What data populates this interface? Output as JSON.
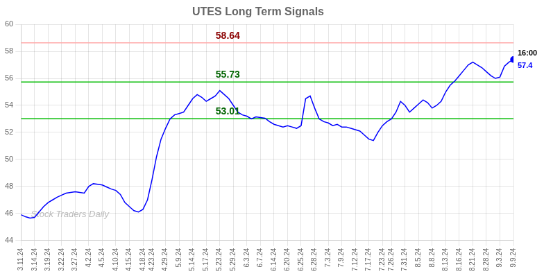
{
  "chart_data": {
    "type": "line",
    "title": "UTES Long Term Signals",
    "categories": [
      "3.11.24",
      null,
      null,
      "3.14.24",
      null,
      null,
      "3.19.24",
      null,
      null,
      "3.22.24",
      null,
      null,
      "3.27.24",
      null,
      null,
      "4.2.24",
      null,
      null,
      "4.5.24",
      null,
      null,
      "4.10.24",
      null,
      null,
      "4.15.24",
      null,
      null,
      "4.18.24",
      null,
      "4.23.24",
      null,
      null,
      "4.29.24",
      null,
      null,
      "5.9.24",
      null,
      null,
      "5.14.24",
      null,
      null,
      "5.17.24",
      null,
      null,
      "5.23.24",
      null,
      null,
      "5.29.24",
      null,
      null,
      "6.3.24",
      null,
      null,
      "6.7.24",
      null,
      null,
      "6.14.24",
      null,
      null,
      "6.20.24",
      null,
      null,
      "6.25.24",
      null,
      null,
      "6.28.24",
      null,
      null,
      "7.3.24",
      null,
      null,
      "7.9.24",
      null,
      null,
      "7.12.24",
      null,
      null,
      "7.17.24",
      null,
      null,
      "7.23.24",
      null,
      "7.26.24",
      null,
      null,
      "7.31.24",
      null,
      null,
      "8.5.24",
      null,
      null,
      "8.8.24",
      null,
      null,
      "8.13.24",
      null,
      null,
      "8.16.24",
      null,
      null,
      "8.21.24",
      null,
      null,
      "8.28.24",
      null,
      null,
      "9.3.24",
      null,
      null,
      "9.9.24"
    ],
    "values": [
      45.9,
      45.75,
      45.65,
      45.7,
      46.1,
      46.5,
      46.8,
      47.0,
      47.2,
      47.35,
      47.5,
      47.55,
      47.6,
      47.55,
      47.5,
      48.0,
      48.2,
      48.15,
      48.1,
      47.95,
      47.8,
      47.7,
      47.4,
      46.8,
      46.5,
      46.2,
      46.1,
      46.3,
      47.0,
      48.5,
      50.2,
      51.5,
      52.3,
      53.0,
      53.3,
      53.4,
      53.5,
      54.0,
      54.5,
      54.8,
      54.6,
      54.3,
      54.5,
      54.7,
      55.1,
      54.8,
      54.5,
      54.0,
      53.5,
      53.3,
      53.2,
      53.0,
      53.15,
      53.1,
      53.05,
      52.8,
      52.6,
      52.5,
      52.4,
      52.5,
      52.4,
      52.3,
      52.5,
      54.5,
      54.7,
      53.8,
      53.0,
      52.8,
      52.7,
      52.5,
      52.6,
      52.4,
      52.4,
      52.3,
      52.2,
      52.1,
      51.8,
      51.5,
      51.4,
      52.0,
      52.5,
      52.8,
      53.0,
      53.5,
      54.3,
      54.0,
      53.5,
      53.8,
      54.1,
      54.4,
      54.2,
      53.8,
      54.0,
      54.3,
      55.0,
      55.5,
      55.8,
      56.2,
      56.6,
      57.0,
      57.2,
      57.0,
      56.8,
      56.5,
      56.2,
      56.0,
      56.1,
      56.9,
      57.2,
      57.4
    ],
    "color": "blue",
    "hlines": [
      {
        "value": 58.64,
        "label": "58.64",
        "color": "#ffaaaa",
        "label_color": "darkred"
      },
      {
        "value": 55.73,
        "label": "55.73",
        "color": "#00bb00",
        "label_color": "darkgreen"
      },
      {
        "value": 53.01,
        "label": "53.01",
        "color": "#00bb00",
        "label_color": "darkgreen"
      }
    ],
    "annotations": [
      {
        "text": "16:00",
        "color": "black"
      },
      {
        "text": "57.4",
        "color": "blue"
      }
    ],
    "watermark": "Stock Traders Daily",
    "ylim": [
      44,
      60
    ],
    "yticks": [
      44,
      46,
      48,
      50,
      52,
      54,
      56,
      58,
      60
    ],
    "grid": true
  }
}
